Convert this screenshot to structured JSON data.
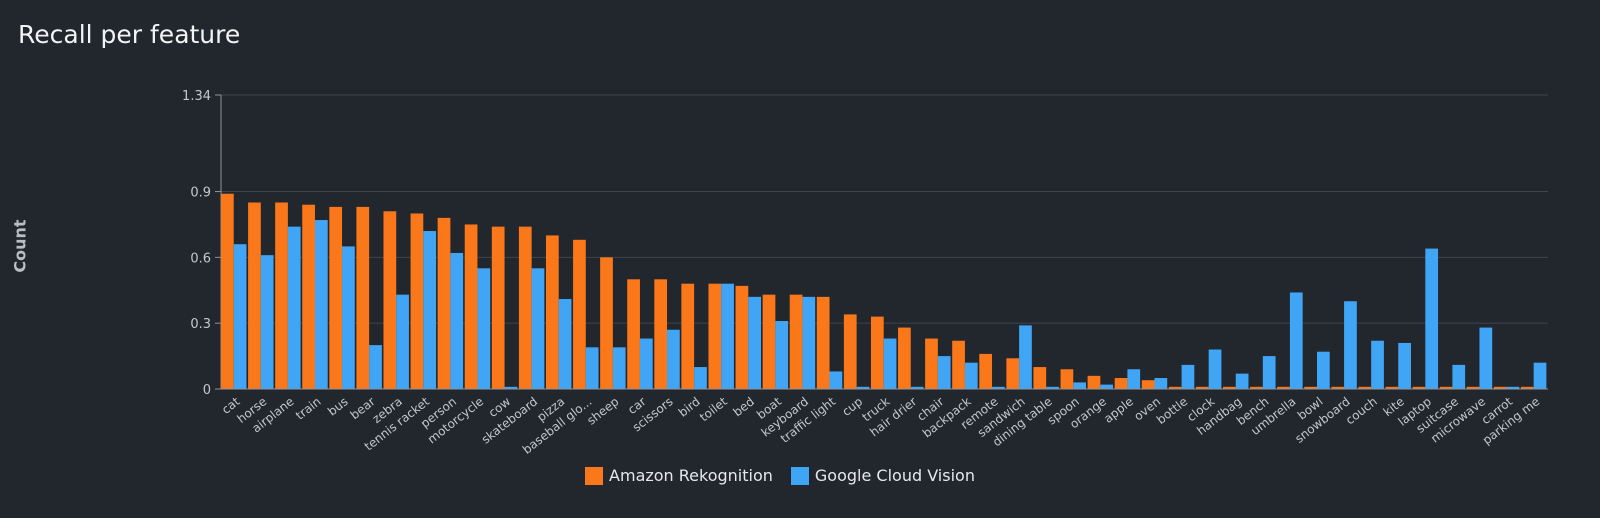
{
  "page": {
    "title": "Recall per feature"
  },
  "colors": {
    "background": "#22262d",
    "grid": "#3f454e",
    "axis": "#8e949c",
    "series_1": "#fa7819",
    "series_2": "#41a5f5"
  },
  "chart_data": {
    "type": "bar",
    "title": "Recall per feature",
    "xlabel": "",
    "ylabel": "Count",
    "ylim": [
      0,
      1.34
    ],
    "yticks": [
      0,
      0.3,
      0.6,
      0.9,
      1.34
    ],
    "ytick_labels": [
      "0",
      "0.3",
      "0.6",
      "0.9",
      "1.34"
    ],
    "grid": true,
    "legend_position": "bottom-center",
    "categories": [
      "cat",
      "horse",
      "airplane",
      "train",
      "bus",
      "bear",
      "zebra",
      "tennis racket",
      "person",
      "motorcycle",
      "cow",
      "skateboard",
      "pizza",
      "baseball glo...",
      "sheep",
      "car",
      "scissors",
      "bird",
      "toilet",
      "bed",
      "boat",
      "keyboard",
      "traffic light",
      "cup",
      "truck",
      "hair drier",
      "chair",
      "backpack",
      "remote",
      "sandwich",
      "dining table",
      "spoon",
      "orange",
      "apple",
      "oven",
      "bottle",
      "clock",
      "handbag",
      "bench",
      "umbrella",
      "bowl",
      "snowboard",
      "couch",
      "kite",
      "laptop",
      "suitcase",
      "microwave",
      "carrot",
      "parking me"
    ],
    "series": [
      {
        "name": "Amazon Rekognition",
        "values": [
          0.89,
          0.85,
          0.85,
          0.84,
          0.83,
          0.83,
          0.81,
          0.8,
          0.78,
          0.75,
          0.74,
          0.74,
          0.7,
          0.68,
          0.6,
          0.5,
          0.5,
          0.48,
          0.48,
          0.47,
          0.43,
          0.43,
          0.42,
          0.34,
          0.33,
          0.28,
          0.23,
          0.22,
          0.16,
          0.14,
          0.1,
          0.09,
          0.06,
          0.05,
          0.04,
          0.01,
          0.01,
          0.01,
          0.01,
          0.01,
          0.01,
          0.01,
          0.01,
          0.01,
          0.01,
          0.01,
          0.01,
          0.01,
          0.01
        ]
      },
      {
        "name": "Google Cloud Vision",
        "values": [
          0.66,
          0.61,
          0.74,
          0.77,
          0.65,
          0.2,
          0.43,
          0.72,
          0.62,
          0.55,
          0.01,
          0.55,
          0.41,
          0.19,
          0.19,
          0.23,
          0.27,
          0.1,
          0.48,
          0.42,
          0.31,
          0.42,
          0.08,
          0.01,
          0.23,
          0.01,
          0.15,
          0.12,
          0.01,
          0.29,
          0.01,
          0.03,
          0.02,
          0.09,
          0.05,
          0.11,
          0.18,
          0.07,
          0.15,
          0.44,
          0.17,
          0.4,
          0.22,
          0.21,
          0.64,
          0.11,
          0.28,
          0.01,
          0.12
        ]
      }
    ]
  }
}
